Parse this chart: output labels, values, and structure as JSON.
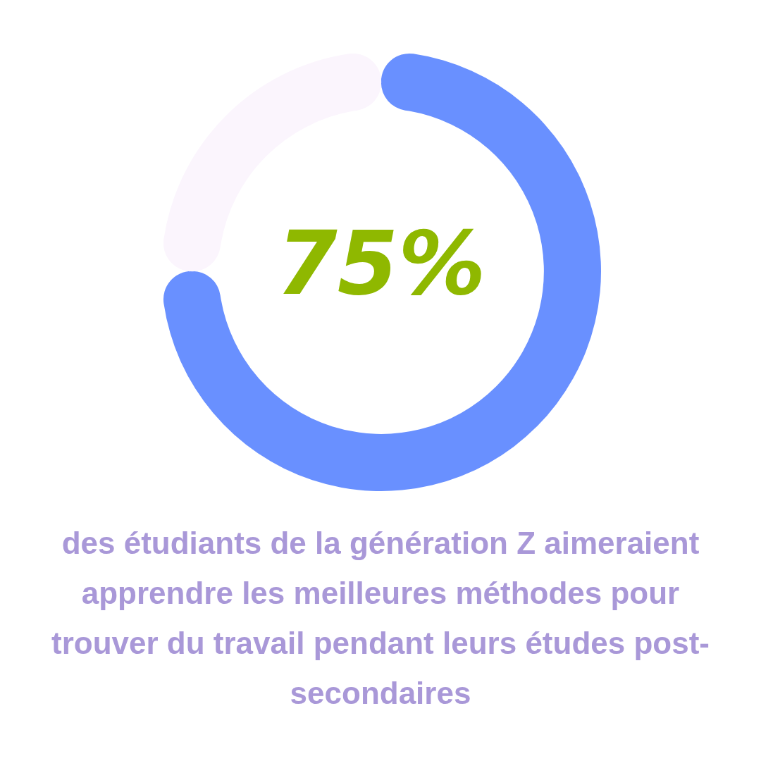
{
  "chart_data": {
    "type": "donut",
    "categories": [
      null,
      null
    ],
    "values": [
      75,
      25
    ],
    "colors": [
      "#6990ff",
      "#fbf5fd"
    ],
    "value_labels": [
      "75%",
      null
    ],
    "annotations": [
      "des étudiants de la génération Z aimeraient apprendre les meilleures méthodes pour trouver du travail pendant leurs études post-secondaires"
    ]
  }
}
